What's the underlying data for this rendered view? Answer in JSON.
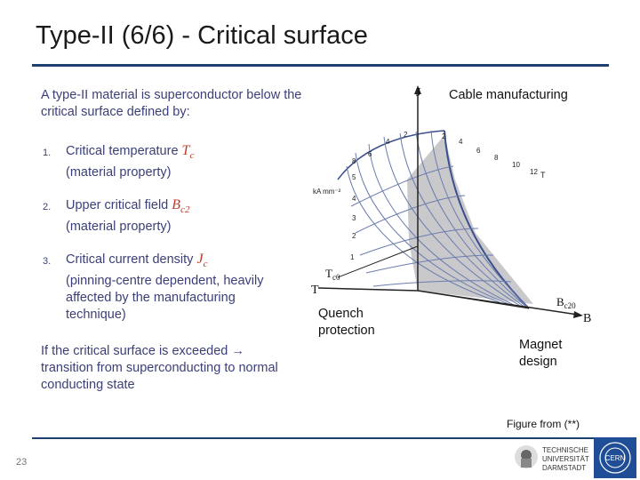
{
  "slide": {
    "title": "Type-II (6/6) - Critical surface",
    "intro": "A type-II  material  is superconductor below the critical surface defined by:",
    "items": [
      {
        "num": "1.",
        "line1": "Critical temperature",
        "sym": "T",
        "sub": "c",
        "line2": "(material property)"
      },
      {
        "num": "2.",
        "line1": "Upper critical field",
        "sym": "B",
        "sub": "c2",
        "line2": "(material property)"
      },
      {
        "num": "3.",
        "line1": "Critical current density",
        "sym": "J",
        "sub": "c",
        "line2": "(pinning-centre dependent, heavily affected by the manufacturing technique)"
      }
    ],
    "conclusion": "If the critical surface is exceeded → transition from superconducting to normal conducting state",
    "callouts": {
      "cable": "Cable manufacturing",
      "quench": "Quench protection",
      "magnet": "Magnet design"
    },
    "figure_credit": "Figure from (**)",
    "page_number": "23"
  },
  "figure": {
    "axis_j": "J",
    "axis_t": "T",
    "axis_b": "B",
    "tc0_main": "T",
    "tc0_sub": "c0",
    "bc20_main": "B",
    "bc20_sub": "c20",
    "j_unit": "kA mm⁻²",
    "b_unit": "T",
    "b_ticks": [
      "2",
      "4",
      "6",
      "8",
      "10",
      "12"
    ],
    "j_ticks": [
      "1",
      "2",
      "3",
      "4",
      "5"
    ],
    "t_ticks": [
      "2",
      "4",
      "6",
      "8"
    ],
    "colors": {
      "surface": "#9aa6c8",
      "fill": "#c8c8cc",
      "line": "#3a4f8c"
    }
  },
  "logos": {
    "tud_lines": [
      "TECHNISCHE",
      "UNIVERSITÄT",
      "DARMSTADT"
    ],
    "cern": "CERN"
  }
}
